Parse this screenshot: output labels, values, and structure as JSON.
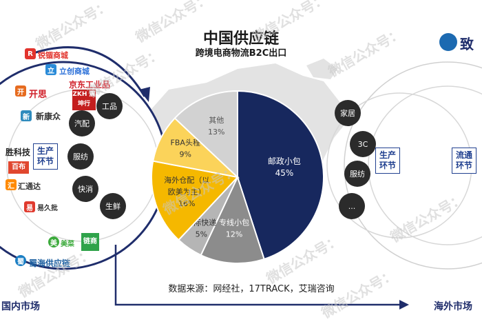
{
  "header": {
    "title": "中国供应链",
    "subtitle": "跨境电商物流B2C出口"
  },
  "source": "数据来源：网经社，17TRACK，艾瑞咨询",
  "left": {
    "stage_label": "生产\n环节",
    "bottom_label": "国内市场",
    "bubbles": [
      "工品",
      "汽配",
      "服纺",
      "快消",
      "生鲜"
    ],
    "logos": [
      "锐锢商城",
      "立创商城",
      "京东工业品",
      "开思",
      "ZKH 震坤行",
      "新康众",
      "胜科技",
      "百布",
      "汇通达",
      "易久批",
      "美菜",
      "链商",
      "蜀海供应链"
    ]
  },
  "right": {
    "stage_label_1": "生产\n环节",
    "stage_label_2": "流通\n环节",
    "bottom_label": "海外市场",
    "bubbles": [
      "家居",
      "3C",
      "服纺",
      "..."
    ],
    "logo_text": "致"
  },
  "watermark": "微信公众号：",
  "chart_data": {
    "type": "pie",
    "title": "中国供应链",
    "subtitle": "跨境电商物流B2C出口",
    "slices": [
      {
        "label": "邮政小包",
        "value": 45,
        "color": "#17285e"
      },
      {
        "label": "专线小包",
        "value": 12,
        "color": "#8c8c8c"
      },
      {
        "label": "国际快递",
        "value": 5,
        "color": "#b5b5b5"
      },
      {
        "label": "海外仓配（以欧美为主）",
        "value": 16,
        "color": "#f5b800"
      },
      {
        "label": "FBA头程",
        "value": 9,
        "color": "#fbd35a"
      },
      {
        "label": "其他",
        "value": 13,
        "color": "#d2d2d2"
      }
    ],
    "slice_labels": [
      {
        "name": "邮政小包",
        "pct": "45%"
      },
      {
        "name": "专线小包",
        "pct": "12%"
      },
      {
        "name": "国际快递",
        "pct": "5%"
      },
      {
        "name": "海外仓配（以\n欧美为主）",
        "pct": "16%"
      },
      {
        "name": "FBA头程",
        "pct": "9%"
      },
      {
        "name": "其他",
        "pct": "13%"
      }
    ]
  }
}
